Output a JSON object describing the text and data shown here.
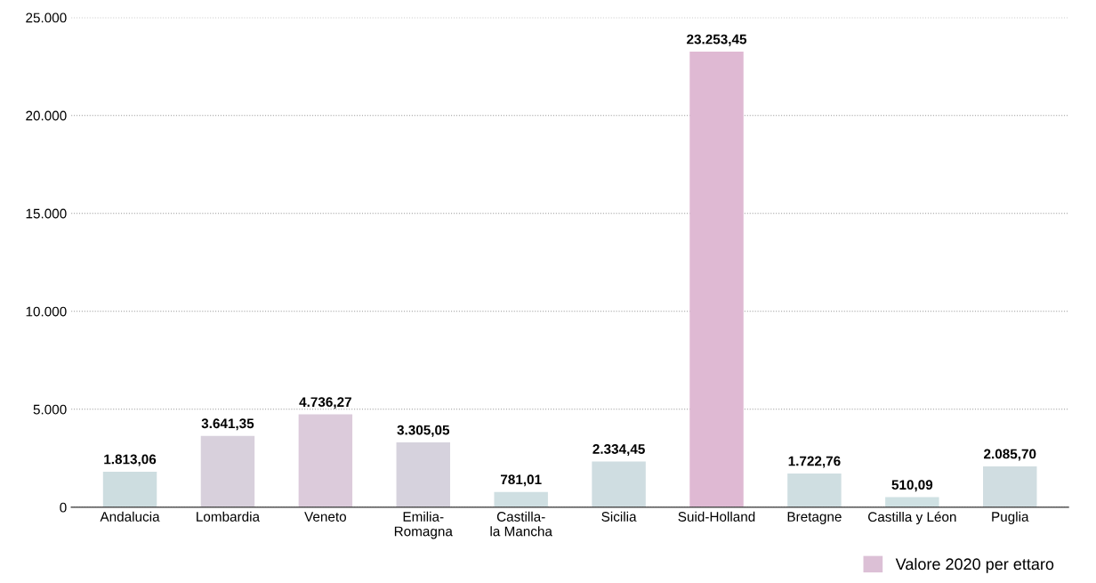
{
  "chart_data": {
    "type": "bar",
    "categories": [
      "Andalucia",
      "Lombardia",
      "Veneto",
      "Emilia-\nRomagna",
      "Castilla-\nla Mancha",
      "Sicilia",
      "Suid-Holland",
      "Bretagne",
      "Castilla y Léon",
      "Puglia"
    ],
    "series": [
      {
        "name": "Valore 2020 per ettaro",
        "color": "#dcc0d6",
        "colors": [
          "#cddde0",
          "#d8d0dc",
          "#dccbdb",
          "#d6d2dd",
          "#cfdfe2",
          "#cfdde1",
          "#dfb9d3",
          "#cfdee1",
          "#cfe1e3",
          "#d0dde1"
        ],
        "values": [
          1813.06,
          3641.35,
          4736.27,
          3305.05,
          781.01,
          2334.45,
          23253.45,
          1722.76,
          510.09,
          2085.7
        ],
        "value_labels": [
          "1.813,06",
          "3.641,35",
          "4.736,27",
          "3.305,05",
          "781,01",
          "2.334,45",
          "23.253,45",
          "1.722,76",
          "510,09",
          "2.085,70"
        ]
      }
    ],
    "ylim": [
      0,
      25000
    ],
    "yticks": [
      {
        "value": 0,
        "label": "0"
      },
      {
        "value": 5000,
        "label": "5.000"
      },
      {
        "value": 10000,
        "label": "10.000"
      },
      {
        "value": 15000,
        "label": "15.000"
      },
      {
        "value": 20000,
        "label": "20.000"
      },
      {
        "value": 25000,
        "label": "25.000"
      }
    ],
    "grid": "y",
    "line_style": "dotted",
    "legend": "bottom right"
  }
}
